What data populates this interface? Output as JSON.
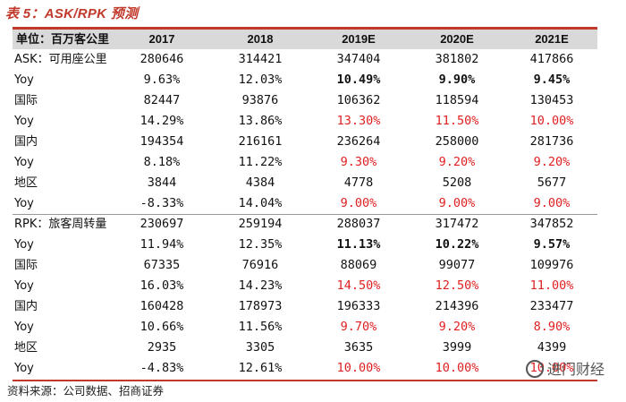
{
  "title": "表 5：ASK/RPK 预测",
  "header": {
    "label": "单位：百万客公里",
    "years": [
      "2017",
      "2018",
      "2019E",
      "2020E",
      "2021E"
    ]
  },
  "rows": [
    {
      "label": "ASK：可用座公里",
      "values": [
        "280646",
        "314421",
        "347404",
        "381802",
        "417866"
      ],
      "style": [
        "",
        "",
        "",
        "",
        ""
      ]
    },
    {
      "label": "Yoy",
      "values": [
        "9.63%",
        "12.03%",
        "10.49%",
        "9.90%",
        "9.45%"
      ],
      "style": [
        "",
        "",
        "bold",
        "bold",
        "bold"
      ]
    },
    {
      "label": "国际",
      "values": [
        "82447",
        "93876",
        "106362",
        "118594",
        "130453"
      ],
      "style": [
        "",
        "",
        "",
        "",
        ""
      ]
    },
    {
      "label": "Yoy",
      "values": [
        "14.29%",
        "13.86%",
        "13.30%",
        "11.50%",
        "10.00%"
      ],
      "style": [
        "",
        "",
        "red",
        "red",
        "red"
      ]
    },
    {
      "label": "国内",
      "values": [
        "194354",
        "216161",
        "236264",
        "258000",
        "281736"
      ],
      "style": [
        "",
        "",
        "",
        "",
        ""
      ]
    },
    {
      "label": "Yoy",
      "values": [
        "8.18%",
        "11.22%",
        "9.30%",
        "9.20%",
        "9.20%"
      ],
      "style": [
        "",
        "",
        "red",
        "red",
        "red"
      ]
    },
    {
      "label": "地区",
      "values": [
        "3844",
        "4384",
        "4778",
        "5208",
        "5677"
      ],
      "style": [
        "",
        "",
        "",
        "",
        ""
      ]
    },
    {
      "label": "Yoy",
      "values": [
        "-8.33%",
        "14.04%",
        "9.00%",
        "9.00%",
        "9.00%"
      ],
      "style": [
        "",
        "",
        "red",
        "red",
        "red"
      ]
    },
    {
      "label": "RPK：旅客周转量",
      "values": [
        "230697",
        "259194",
        "288037",
        "317472",
        "347852"
      ],
      "style": [
        "",
        "",
        "",
        "",
        ""
      ]
    },
    {
      "label": "Yoy",
      "values": [
        "11.94%",
        "12.35%",
        "11.13%",
        "10.22%",
        "9.57%"
      ],
      "style": [
        "",
        "",
        "bold",
        "bold",
        "bold"
      ]
    },
    {
      "label": "国际",
      "values": [
        "67335",
        "76916",
        "88069",
        "99077",
        "109976"
      ],
      "style": [
        "",
        "",
        "",
        "",
        ""
      ]
    },
    {
      "label": "Yoy",
      "values": [
        "16.03%",
        "14.23%",
        "14.50%",
        "12.50%",
        "11.00%"
      ],
      "style": [
        "",
        "",
        "red",
        "red",
        "red"
      ]
    },
    {
      "label": "国内",
      "values": [
        "160428",
        "178973",
        "196333",
        "214396",
        "233477"
      ],
      "style": [
        "",
        "",
        "",
        "",
        ""
      ]
    },
    {
      "label": "Yoy",
      "values": [
        "10.66%",
        "11.56%",
        "9.70%",
        "9.20%",
        "8.90%"
      ],
      "style": [
        "",
        "",
        "red",
        "red",
        "red"
      ]
    },
    {
      "label": "地区",
      "values": [
        "2935",
        "3305",
        "3635",
        "3999",
        "4399"
      ],
      "style": [
        "",
        "",
        "",
        "",
        ""
      ]
    },
    {
      "label": "Yoy",
      "values": [
        "-4.83%",
        "12.61%",
        "10.00%",
        "10.00%",
        "10.00%"
      ],
      "style": [
        "",
        "",
        "red",
        "red",
        "red"
      ]
    }
  ],
  "source": "资料来源：公司数据、招商证券",
  "watermark": "进门财经"
}
